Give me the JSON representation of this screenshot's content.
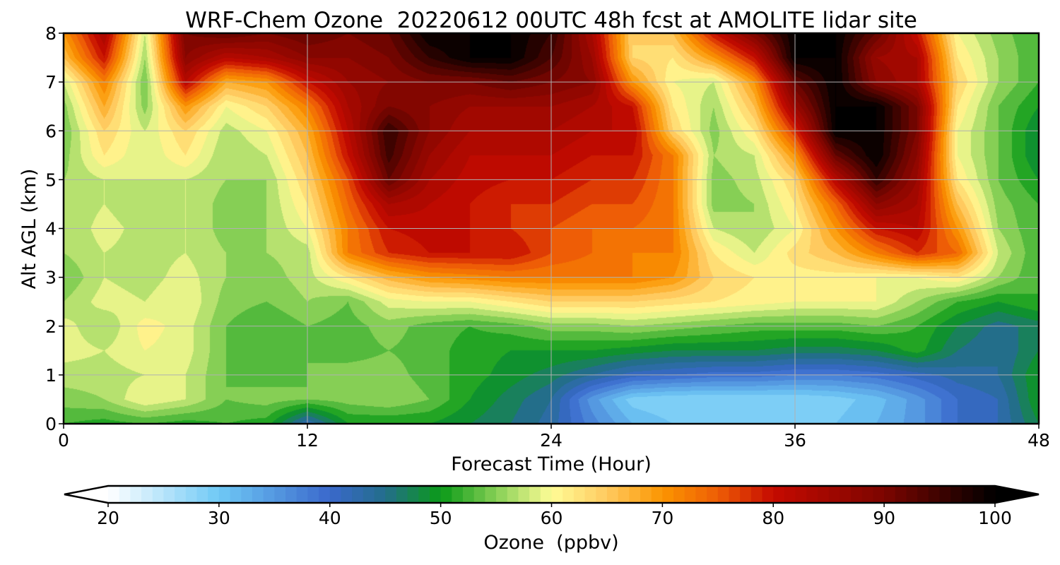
{
  "chart_data": {
    "type": "heatmap",
    "title": "WRF-Chem Ozone  20220612 00UTC 48h fcst at AMOLITE lidar site",
    "xlabel": "Forecast Time (Hour)",
    "ylabel": "Alt AGL (km)",
    "xlim": [
      0,
      48
    ],
    "ylim": [
      0,
      8
    ],
    "x_ticks": [
      0,
      12,
      24,
      36,
      48
    ],
    "y_ticks": [
      0,
      1,
      2,
      3,
      4,
      5,
      6,
      7,
      8
    ],
    "grid": true,
    "colorbar": {
      "label": "Ozone  (ppbv)",
      "min": 20,
      "max": 100,
      "ticks": [
        20,
        30,
        40,
        50,
        60,
        70,
        80,
        90,
        100
      ],
      "extend": "both",
      "stops": [
        {
          "value": 20,
          "color": "#ffffff"
        },
        {
          "value": 30,
          "color": "#6fc9f5"
        },
        {
          "value": 40,
          "color": "#3a68cc"
        },
        {
          "value": 45,
          "color": "#236e8a"
        },
        {
          "value": 50,
          "color": "#0a9a18"
        },
        {
          "value": 55,
          "color": "#86cf55"
        },
        {
          "value": 60,
          "color": "#fffc96"
        },
        {
          "value": 65,
          "color": "#ffca5f"
        },
        {
          "value": 70,
          "color": "#fb9500"
        },
        {
          "value": 75,
          "color": "#ee5d06"
        },
        {
          "value": 80,
          "color": "#c50a00"
        },
        {
          "value": 90,
          "color": "#7c0500"
        },
        {
          "value": 100,
          "color": "#000000"
        }
      ]
    },
    "x": [
      0,
      2,
      4,
      6,
      8,
      10,
      12,
      14,
      16,
      18,
      20,
      22,
      24,
      26,
      28,
      30,
      32,
      34,
      36,
      38,
      40,
      42,
      44,
      46,
      48
    ],
    "y": [
      0,
      0.5,
      1,
      1.5,
      2,
      2.5,
      3,
      3.5,
      4,
      4.5,
      5,
      5.5,
      6,
      6.5,
      7,
      7.5,
      8
    ],
    "z": [
      [
        52,
        51,
        52,
        51,
        52,
        51,
        42,
        50,
        50,
        50,
        48,
        46,
        43,
        37,
        32,
        30,
        29,
        29,
        29,
        30,
        32,
        35,
        40,
        42,
        48
      ],
      [
        55,
        56,
        60,
        58,
        54,
        55,
        54,
        55,
        56,
        54,
        50,
        47,
        44,
        35,
        29,
        28,
        28,
        28,
        28,
        29,
        31,
        35,
        40,
        42,
        50
      ],
      [
        57,
        57,
        58,
        58,
        54,
        53,
        54,
        55,
        55,
        53,
        51,
        49,
        47,
        44,
        41,
        40,
        39,
        39,
        38,
        38,
        39,
        41,
        43,
        44,
        50
      ],
      [
        59,
        58,
        60,
        59,
        54,
        53,
        54,
        53,
        54,
        53,
        51,
        50,
        50,
        50,
        49,
        48,
        48,
        48,
        47,
        47,
        48,
        51,
        46,
        44,
        48
      ],
      [
        59,
        56,
        61,
        59,
        54,
        52,
        54,
        53,
        55,
        53,
        52,
        53,
        55,
        55,
        56,
        55,
        54,
        53,
        53,
        53,
        54,
        52,
        48,
        45,
        47
      ],
      [
        56,
        59,
        58,
        60,
        55,
        54,
        56,
        54,
        59,
        60,
        60,
        62,
        64,
        64,
        64,
        63,
        62,
        61,
        60,
        60,
        60,
        56,
        52,
        50,
        52
      ],
      [
        54,
        58,
        57,
        59,
        56,
        55,
        57,
        62,
        67,
        70,
        71,
        72,
        72,
        72,
        72,
        70,
        64,
        62,
        61,
        61,
        60,
        60,
        62,
        56,
        52
      ],
      [
        56,
        58,
        57,
        58,
        56,
        56,
        57,
        72,
        78,
        80,
        80,
        80,
        76,
        74,
        72,
        72,
        62,
        58,
        63,
        66,
        72,
        78,
        74,
        58,
        52
      ],
      [
        56,
        59,
        57,
        58,
        55,
        56,
        60,
        72,
        80,
        81,
        80,
        78,
        76,
        74,
        74,
        72,
        58,
        56,
        60,
        70,
        80,
        82,
        70,
        56,
        52
      ],
      [
        56,
        58,
        56,
        58,
        55,
        56,
        62,
        74,
        84,
        82,
        80,
        78,
        78,
        76,
        76,
        72,
        55,
        56,
        62,
        74,
        88,
        84,
        66,
        55,
        52
      ],
      [
        56,
        58,
        58,
        58,
        56,
        56,
        64,
        76,
        92,
        84,
        81,
        80,
        80,
        78,
        78,
        72,
        55,
        57,
        64,
        82,
        96,
        86,
        62,
        54,
        50
      ],
      [
        55,
        62,
        58,
        62,
        56,
        58,
        66,
        80,
        95,
        86,
        82,
        82,
        82,
        80,
        80,
        72,
        56,
        58,
        70,
        92,
        100,
        88,
        60,
        54,
        48
      ],
      [
        54,
        64,
        58,
        64,
        57,
        60,
        68,
        82,
        96,
        88,
        84,
        84,
        84,
        82,
        82,
        64,
        55,
        62,
        78,
        100,
        100,
        90,
        60,
        54,
        48
      ],
      [
        55,
        68,
        55,
        70,
        60,
        64,
        72,
        84,
        90,
        88,
        86,
        86,
        86,
        84,
        80,
        62,
        56,
        66,
        86,
        100,
        100,
        90,
        62,
        54,
        50
      ],
      [
        58,
        72,
        54,
        82,
        68,
        70,
        80,
        86,
        88,
        90,
        90,
        92,
        90,
        88,
        70,
        60,
        58,
        70,
        92,
        100,
        88,
        84,
        64,
        56,
        52
      ],
      [
        66,
        80,
        56,
        88,
        82,
        84,
        88,
        88,
        90,
        96,
        100,
        100,
        94,
        86,
        64,
        62,
        70,
        80,
        100,
        100,
        86,
        84,
        62,
        56,
        52
      ],
      [
        70,
        84,
        58,
        90,
        92,
        90,
        92,
        90,
        92,
        100,
        100,
        100,
        96,
        84,
        64,
        66,
        80,
        90,
        100,
        100,
        92,
        80,
        60,
        55,
        52
      ]
    ]
  }
}
